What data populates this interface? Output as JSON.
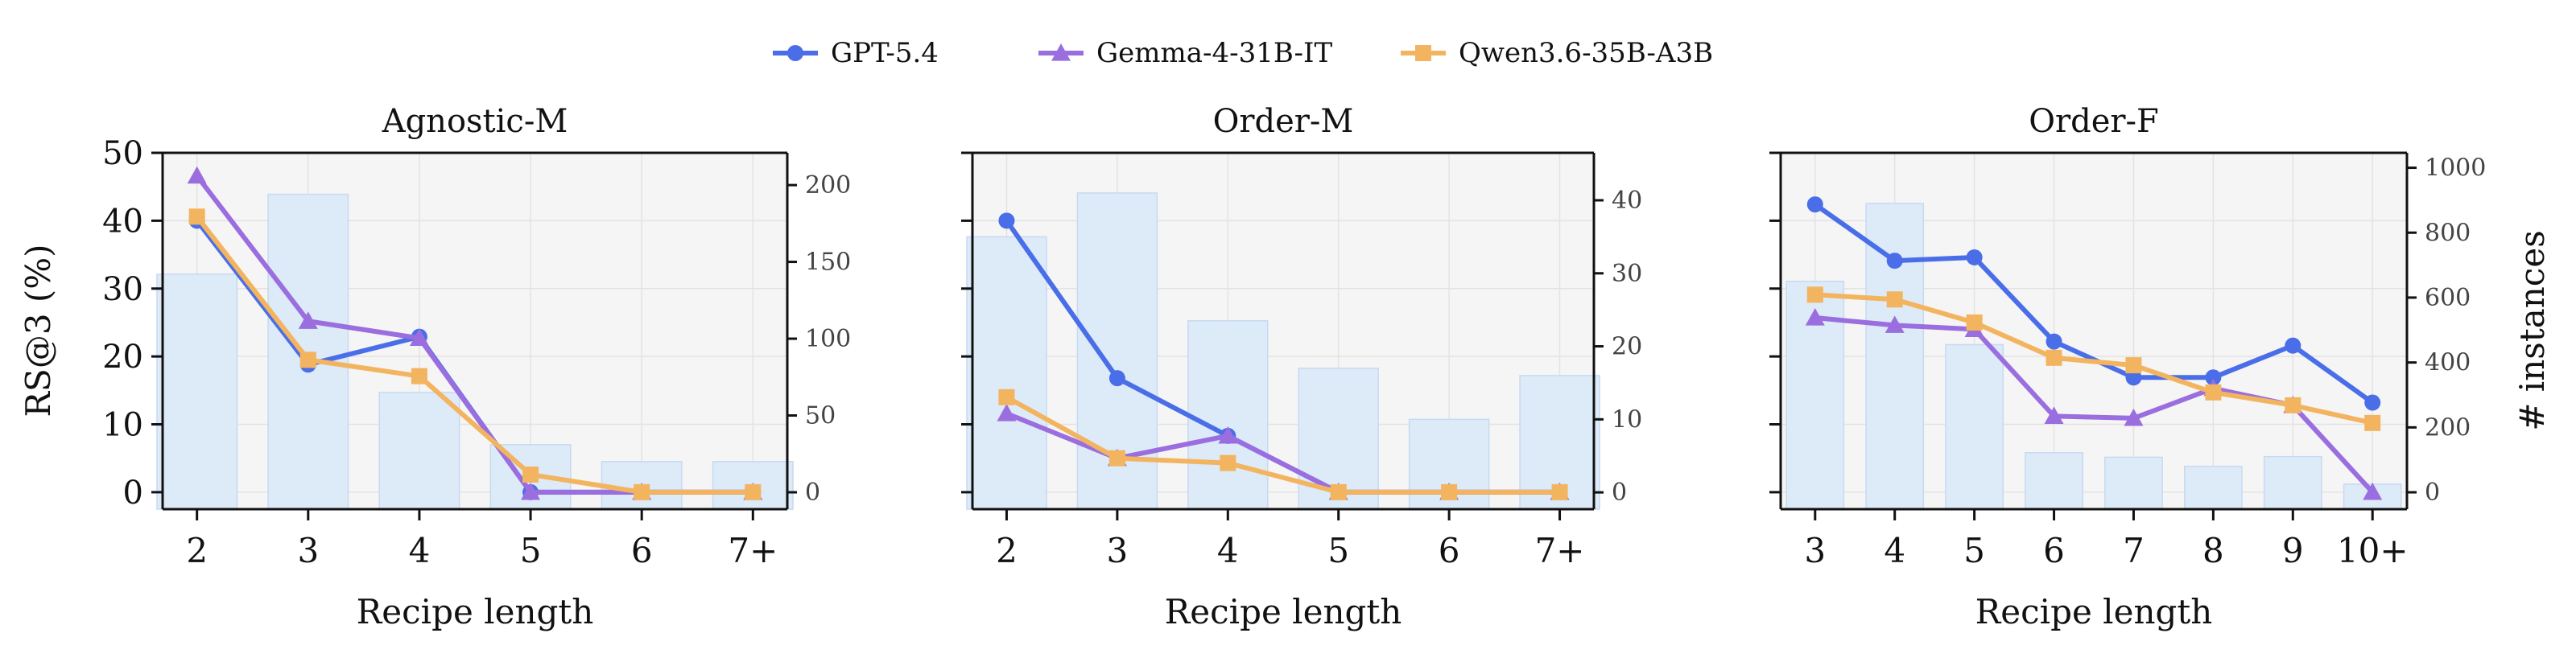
{
  "legend": {
    "entries": [
      {
        "label": "GPT-5.4",
        "color": "#4a6ee8",
        "marker": "circle"
      },
      {
        "label": "Gemma-4-31B-IT",
        "color": "#9b6ee0",
        "marker": "triangle"
      },
      {
        "label": "Qwen3.6-35B-A3B",
        "color": "#f3b460",
        "marker": "square"
      }
    ]
  },
  "colors": {
    "bar_fill": "#ddeaf8",
    "bar_stroke": "#c6daf2",
    "panel_bg": "#f5f5f5",
    "grid": "#e3e3e3"
  },
  "left_ylabel": "RS@3 (%)",
  "right_ylabel": "# instances",
  "chart_data": [
    {
      "type": "line",
      "title": "Agnostic-M",
      "xlabel": "Recipe length",
      "categories": [
        "2",
        "3",
        "4",
        "5",
        "6",
        "7+"
      ],
      "ylim": [
        -2.5,
        50
      ],
      "yticks": [
        0,
        10,
        20,
        30,
        40,
        50
      ],
      "bars": {
        "values": [
          142,
          194,
          65,
          31,
          20,
          20
        ],
        "ylim": [
          -11,
          221
        ],
        "yticks": [
          0,
          50,
          100,
          150,
          200
        ]
      },
      "series": [
        {
          "name": "GPT-5.4",
          "values": [
            40.0,
            18.8,
            22.9,
            0.0,
            0.0,
            0.0
          ]
        },
        {
          "name": "Gemma-4-31B-IT",
          "values": [
            46.6,
            25.2,
            22.7,
            0.0,
            0.0,
            0.0
          ]
        },
        {
          "name": "Qwen3.6-35B-A3B",
          "values": [
            40.6,
            19.5,
            17.1,
            2.6,
            0.0,
            0.0
          ]
        }
      ],
      "grid": true
    },
    {
      "type": "line",
      "title": "Order-M",
      "xlabel": "Recipe length",
      "categories": [
        "2",
        "3",
        "4",
        "5",
        "6",
        "7+"
      ],
      "ylim": [
        -2.5,
        50
      ],
      "yticks": [
        0,
        10,
        20,
        30,
        40,
        50
      ],
      "bars": {
        "values": [
          35,
          41,
          23.5,
          17,
          10,
          16
        ],
        "ylim": [
          -2.3,
          46.5
        ],
        "yticks": [
          0,
          10,
          20,
          30,
          40
        ]
      },
      "series": [
        {
          "name": "GPT-5.4",
          "values": [
            40.0,
            16.8,
            8.3,
            0.0,
            0.0,
            0.0
          ]
        },
        {
          "name": "Gemma-4-31B-IT",
          "values": [
            11.6,
            5.0,
            8.3,
            0.0,
            0.0,
            0.0
          ]
        },
        {
          "name": "Qwen3.6-35B-A3B",
          "values": [
            14.0,
            5.0,
            4.3,
            0.0,
            0.0,
            0.0
          ]
        }
      ],
      "grid": true
    },
    {
      "type": "line",
      "title": "Order-F",
      "xlabel": "Recipe length",
      "categories": [
        "3",
        "4",
        "5",
        "6",
        "7",
        "8",
        "9",
        "10+"
      ],
      "ylim": [
        -2.5,
        50
      ],
      "yticks": [
        0,
        10,
        20,
        30,
        40,
        50
      ],
      "bars": {
        "values": [
          650,
          890,
          455,
          122,
          108,
          80,
          110,
          25
        ],
        "ylim": [
          -52,
          1046
        ],
        "yticks": [
          0,
          200,
          400,
          600,
          800,
          1000
        ]
      },
      "series": [
        {
          "name": "GPT-5.4",
          "values": [
            42.4,
            34.1,
            34.6,
            22.2,
            16.9,
            16.9,
            21.6,
            13.2
          ]
        },
        {
          "name": "Gemma-4-31B-IT",
          "values": [
            25.7,
            24.6,
            24.0,
            11.2,
            10.9,
            15.3,
            12.8,
            0.0
          ]
        },
        {
          "name": "Qwen3.6-35B-A3B",
          "values": [
            29.1,
            28.4,
            25.0,
            19.8,
            18.7,
            14.7,
            12.8,
            10.2
          ]
        }
      ],
      "grid": true
    }
  ]
}
